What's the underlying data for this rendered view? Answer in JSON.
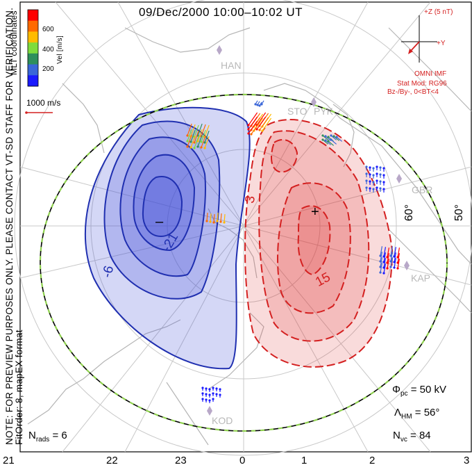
{
  "title": "09/Dec/2000  10:00–10:02 UT",
  "coordinates_label": "MLT coordinates",
  "colorbar": {
    "axis_label": "Vel [m/s]",
    "ticks": [
      "600",
      "400",
      "200"
    ],
    "colors": [
      "#ff0000",
      "#ff6a00",
      "#ffbb00",
      "#7fdc3c",
      "#2e8f5c",
      "#3a66d8",
      "#1a1aff"
    ]
  },
  "velocity_scale_label": "1000 m/s",
  "disclaimer_line1": "NOTE: FOR PREVIEW PURPOSES ONLY. PLEASE CONTACT VT-SD STAFF FOR VERIFICATION.",
  "disclaimer_line2": "FitOrder: 8, mapEX format",
  "imf": {
    "z_label": "+Z (5 nT)",
    "y_label": "+Y",
    "source": "OMNI IMF",
    "model": "Stat Mod: RG96",
    "condition": "Bz-/By-, 0<BT<4",
    "color": "#d42020"
  },
  "stats": {
    "nrads_label": "N",
    "nrads_sub": "rads",
    "nrads_value": "= 6",
    "phi_label": "Φ",
    "phi_sub": "pc",
    "phi_value": "=  50 kV",
    "lambda_label": "Λ",
    "lambda_sub": "HM",
    "lambda_value": "=  56°",
    "nvc_label": "N",
    "nvc_sub": "vc",
    "nvc_value": "=  84"
  },
  "mlt_ticks": [
    "21",
    "22",
    "23",
    "0",
    "1",
    "2",
    "3"
  ],
  "latitude_labels": [
    "60°",
    "50°"
  ],
  "contour_labels": [
    "-6",
    "-21",
    "3",
    "15"
  ],
  "cell_markers": {
    "min": "–",
    "max": "+"
  },
  "radar_sites": [
    "HAN",
    "STO",
    "PYK",
    "GBR",
    "KAP",
    "KOD"
  ],
  "colors": {
    "negative_cell": "#1f2fb0",
    "positive_cell": "#d42020",
    "hm_boundary": "#8fd14f"
  }
}
